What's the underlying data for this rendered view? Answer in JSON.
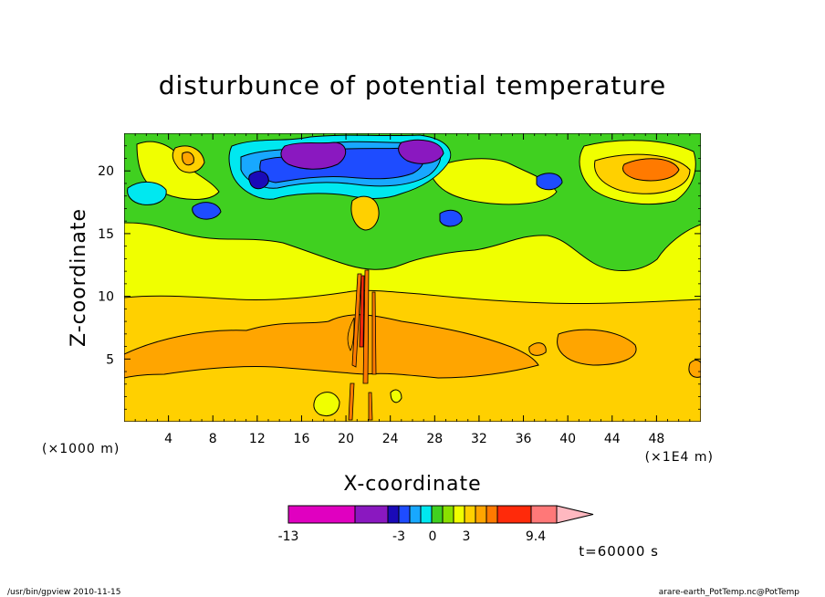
{
  "chart_data": {
    "type": "heatmap",
    "title": "disturbunce of potential temperature",
    "xlabel": "X-coordinate",
    "ylabel": "Z-coordinate",
    "x_unit_left": "(×1000 m)",
    "x_unit_right": "(×1E4 m)",
    "xlim": [
      0,
      52
    ],
    "ylim": [
      0,
      23
    ],
    "x_ticks": [
      4,
      8,
      12,
      16,
      20,
      24,
      28,
      32,
      36,
      40,
      44,
      48
    ],
    "y_ticks": [
      5,
      10,
      15,
      20
    ],
    "colorbar": {
      "colors": [
        "#e000c0",
        "#8a18c0",
        "#1a0ab8",
        "#1e4cff",
        "#18a8ff",
        "#00e8f0",
        "#40d020",
        "#8ae000",
        "#f0ff00",
        "#ffd000",
        "#ffa500",
        "#ff7a00",
        "#ff2a0a",
        "#ff7878",
        "#ffb8c0"
      ],
      "labels": [
        "-13",
        "-3",
        "0",
        "3",
        "9.4"
      ]
    },
    "annotation": "t=60000 s",
    "footer_left": "/usr/bin/gpview  2010-11-15",
    "footer_right": "arare-earth_PotTemp.nc@PotTemp"
  },
  "palette": {
    "orange": "#ffa500",
    "gold": "#ffd000",
    "yellow": "#f0ff00",
    "green": "#40d020",
    "lightgreen": "#8ae000",
    "cyan": "#00e8f0",
    "skyblue": "#18a8ff",
    "blue": "#1e4cff",
    "navy": "#1a0ab8",
    "purple": "#8a18c0",
    "darkorange": "#ff7a00"
  }
}
